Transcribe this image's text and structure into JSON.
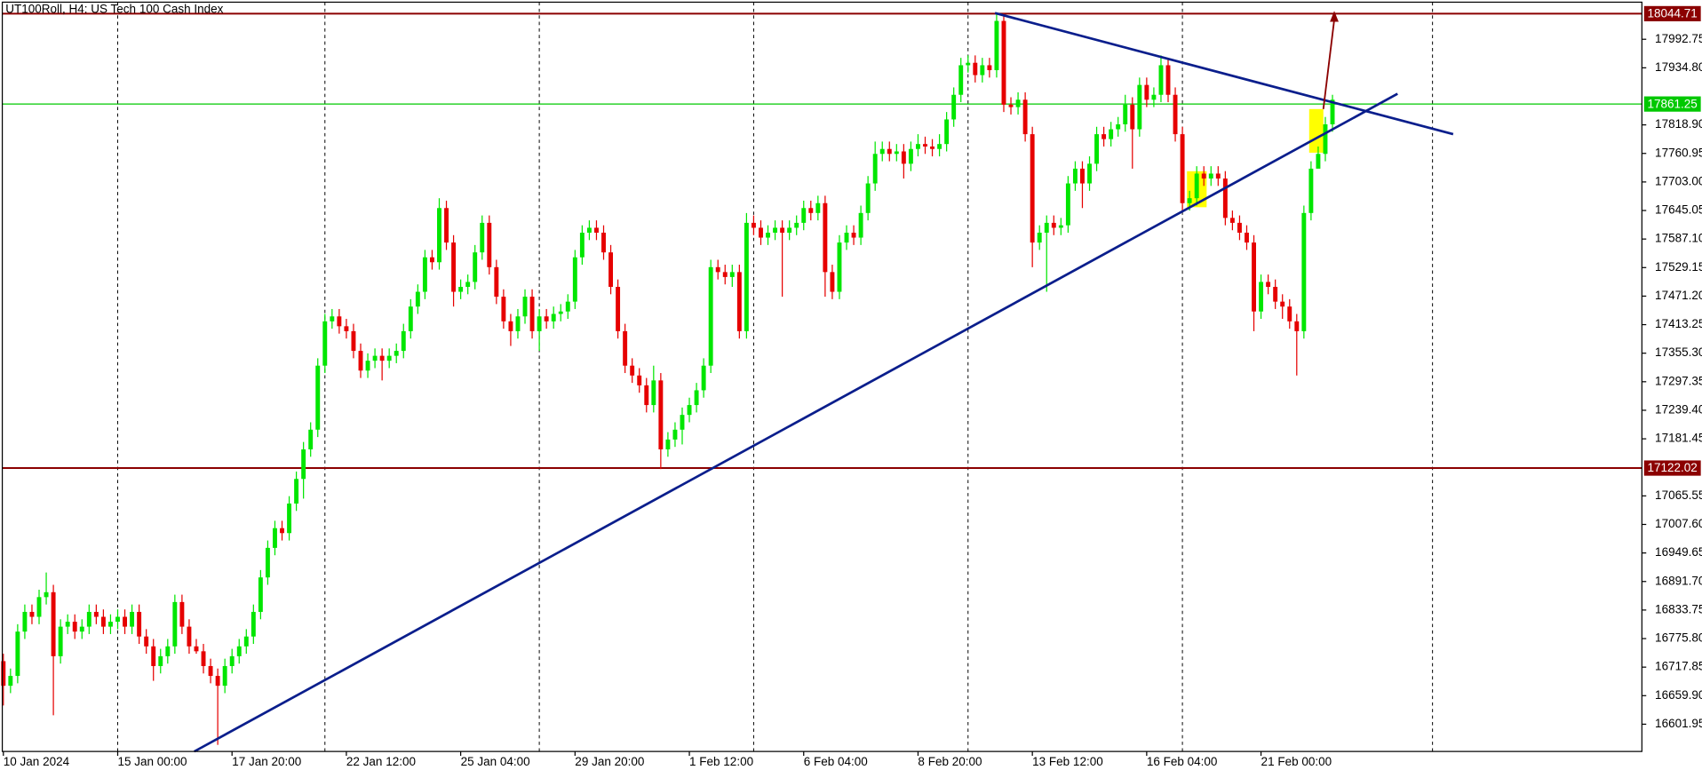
{
  "chart_data": {
    "type": "candlestick",
    "title": "UT100Roll, H4:  US Tech 100 Cash Index",
    "open": [
      16730,
      16680,
      16700,
      16790,
      16830,
      16820,
      16860,
      16870,
      16740,
      16800,
      16810,
      16790,
      16800,
      16830,
      16820,
      16800,
      16810,
      16820,
      16800,
      16830,
      16780,
      16760,
      16720,
      16740,
      16760,
      16850,
      16800,
      16760,
      16750,
      16720,
      16700,
      16680,
      16720,
      16740,
      16760,
      16780,
      16830,
      16900,
      16960,
      17000,
      16990,
      17050,
      17100,
      17160,
      17200,
      17330,
      17420,
      17430,
      17410,
      17400,
      17360,
      17320,
      17340,
      17350,
      17340,
      17350,
      17360,
      17400,
      17450,
      17480,
      17550,
      17540,
      17650,
      17580,
      17480,
      17490,
      17500,
      17560,
      17620,
      17530,
      17470,
      17420,
      17400,
      17430,
      17470,
      17400,
      17430,
      17420,
      17435,
      17440,
      17460,
      17550,
      17600,
      17610,
      17600,
      17560,
      17490,
      17400,
      17330,
      17310,
      17290,
      17250,
      17300,
      17160,
      17180,
      17200,
      17230,
      17250,
      17280,
      17330,
      17530,
      17520,
      17510,
      17520,
      17400,
      17620,
      17610,
      17590,
      17600,
      17610,
      17600,
      17610,
      17620,
      17650,
      17640,
      17660,
      17520,
      17480,
      17580,
      17600,
      17590,
      17640,
      17700,
      17760,
      17770,
      17760,
      17765,
      17740,
      17770,
      17780,
      17775,
      17770,
      17780,
      17830,
      17880,
      17940,
      17945,
      17920,
      17940,
      17930,
      18030,
      17860,
      17855,
      17870,
      17800,
      17580,
      17600,
      17620,
      17610,
      17615,
      17700,
      17730,
      17700,
      17740,
      17800,
      17790,
      17810,
      17820,
      17860,
      17810,
      17900,
      17870,
      17880,
      17940,
      17880,
      17800,
      17660,
      17670,
      17720,
      17710,
      17720,
      17710,
      17630,
      17620,
      17600,
      17580,
      17440,
      17500,
      17490,
      17460,
      17450,
      17420,
      17400,
      17640,
      17730,
      17760,
      17820
    ],
    "high": [
      16745,
      16715,
      16805,
      16845,
      16845,
      16875,
      16910,
      16885,
      16815,
      16825,
      16825,
      16815,
      16845,
      16845,
      16835,
      16825,
      16835,
      16835,
      16845,
      16845,
      16795,
      16775,
      16755,
      16775,
      16865,
      16865,
      16815,
      16775,
      16765,
      16735,
      16715,
      16735,
      16755,
      16775,
      16795,
      16845,
      16915,
      16975,
      17015,
      17015,
      17065,
      17115,
      17175,
      17215,
      17345,
      17435,
      17445,
      17445,
      17425,
      17415,
      17375,
      17355,
      17365,
      17365,
      17365,
      17375,
      17415,
      17465,
      17495,
      17565,
      17565,
      17670,
      17665,
      17595,
      17505,
      17515,
      17575,
      17635,
      17635,
      17545,
      17485,
      17435,
      17445,
      17485,
      17485,
      17445,
      17445,
      17450,
      17455,
      17475,
      17565,
      17615,
      17625,
      17625,
      17615,
      17575,
      17505,
      17415,
      17345,
      17325,
      17305,
      17330,
      17315,
      17195,
      17215,
      17245,
      17265,
      17295,
      17345,
      17545,
      17545,
      17535,
      17535,
      17535,
      17640,
      17635,
      17625,
      17615,
      17625,
      17625,
      17625,
      17635,
      17665,
      17665,
      17675,
      17675,
      17535,
      17595,
      17615,
      17615,
      17655,
      17715,
      17785,
      17785,
      17785,
      17780,
      17780,
      17785,
      17800,
      17795,
      17790,
      17800,
      17845,
      17895,
      17955,
      17960,
      17960,
      17955,
      17955,
      18045,
      18045,
      17875,
      17885,
      17885,
      17815,
      17615,
      17635,
      17635,
      17630,
      17715,
      17745,
      17745,
      17755,
      17815,
      17815,
      17825,
      17835,
      17880,
      17875,
      17915,
      17915,
      17895,
      17960,
      17955,
      17895,
      17815,
      17685,
      17735,
      17735,
      17735,
      17735,
      17725,
      17645,
      17635,
      17615,
      17595,
      17515,
      17515,
      17505,
      17475,
      17465,
      17435,
      17655,
      17745,
      17775,
      17835,
      17880
    ],
    "low": [
      16640,
      16665,
      16685,
      16775,
      16805,
      16805,
      16845,
      16620,
      16725,
      16785,
      16775,
      16775,
      16785,
      16805,
      16785,
      16785,
      16795,
      16785,
      16785,
      16765,
      16745,
      16690,
      16705,
      16725,
      16745,
      16785,
      16745,
      16745,
      16705,
      16685,
      16560,
      16665,
      16705,
      16725,
      16745,
      16765,
      16815,
      16885,
      16945,
      16975,
      16975,
      17035,
      17060,
      17145,
      17185,
      17315,
      17405,
      17395,
      17385,
      17345,
      17305,
      17305,
      17325,
      17300,
      17325,
      17335,
      17345,
      17385,
      17435,
      17465,
      17525,
      17525,
      17565,
      17450,
      17465,
      17475,
      17485,
      17545,
      17515,
      17455,
      17405,
      17370,
      17385,
      17415,
      17385,
      17360,
      17405,
      17405,
      17420,
      17425,
      17445,
      17535,
      17585,
      17585,
      17545,
      17475,
      17385,
      17315,
      17295,
      17275,
      17235,
      17235,
      17120,
      17145,
      17165,
      17170,
      17215,
      17235,
      17265,
      17315,
      17505,
      17495,
      17490,
      17385,
      17385,
      17595,
      17575,
      17575,
      17585,
      17470,
      17585,
      17595,
      17605,
      17625,
      17625,
      17470,
      17465,
      17465,
      17565,
      17575,
      17575,
      17625,
      17685,
      17745,
      17745,
      17745,
      17710,
      17725,
      17755,
      17760,
      17755,
      17755,
      17765,
      17815,
      17865,
      17925,
      17905,
      17905,
      17915,
      17915,
      17845,
      17840,
      17840,
      17785,
      17530,
      17565,
      17480,
      17595,
      17595,
      17600,
      17685,
      17650,
      17685,
      17725,
      17775,
      17775,
      17795,
      17805,
      17730,
      17795,
      17855,
      17855,
      17865,
      17865,
      17785,
      17645,
      17645,
      17655,
      17695,
      17695,
      17695,
      17615,
      17605,
      17585,
      17565,
      17400,
      17425,
      17475,
      17445,
      17425,
      17405,
      17310,
      17385,
      17625,
      17745,
      17745,
      17805
    ],
    "close": [
      16680,
      16700,
      16790,
      16830,
      16820,
      16860,
      16870,
      16740,
      16800,
      16810,
      16790,
      16800,
      16830,
      16820,
      16800,
      16810,
      16820,
      16800,
      16830,
      16780,
      16760,
      16720,
      16740,
      16760,
      16850,
      16800,
      16760,
      16750,
      16720,
      16700,
      16680,
      16720,
      16740,
      16760,
      16780,
      16830,
      16900,
      16960,
      17000,
      16990,
      17050,
      17100,
      17160,
      17200,
      17330,
      17420,
      17430,
      17410,
      17400,
      17360,
      17320,
      17340,
      17350,
      17340,
      17350,
      17360,
      17400,
      17450,
      17480,
      17550,
      17540,
      17650,
      17580,
      17480,
      17490,
      17500,
      17560,
      17620,
      17530,
      17470,
      17420,
      17400,
      17430,
      17470,
      17400,
      17430,
      17420,
      17435,
      17440,
      17460,
      17550,
      17600,
      17610,
      17600,
      17560,
      17490,
      17400,
      17330,
      17310,
      17290,
      17250,
      17300,
      17160,
      17180,
      17200,
      17230,
      17250,
      17280,
      17330,
      17530,
      17520,
      17510,
      17520,
      17400,
      17620,
      17610,
      17590,
      17600,
      17610,
      17600,
      17610,
      17620,
      17650,
      17640,
      17660,
      17520,
      17480,
      17580,
      17600,
      17590,
      17640,
      17700,
      17760,
      17770,
      17760,
      17765,
      17740,
      17770,
      17780,
      17775,
      17770,
      17780,
      17830,
      17880,
      17940,
      17945,
      17920,
      17940,
      17930,
      18030,
      17860,
      17855,
      17870,
      17800,
      17580,
      17600,
      17620,
      17610,
      17615,
      17700,
      17730,
      17700,
      17740,
      17800,
      17790,
      17810,
      17820,
      17860,
      17810,
      17900,
      17870,
      17880,
      17940,
      17880,
      17800,
      17660,
      17670,
      17720,
      17710,
      17720,
      17710,
      17630,
      17620,
      17600,
      17580,
      17440,
      17500,
      17490,
      17460,
      17450,
      17420,
      17400,
      17640,
      17730,
      17760,
      17820,
      17870
    ],
    "up_color": "#00e600",
    "down_color": "#e60000",
    "xlim": [
      -0.15,
      229.3
    ],
    "xticks": [
      {
        "value": 0,
        "label": "10 Jan 2024"
      },
      {
        "value": 16,
        "label": "15 Jan 00:00"
      },
      {
        "value": 32,
        "label": "17 Jan 20:00"
      },
      {
        "value": 48,
        "label": "22 Jan 12:00"
      },
      {
        "value": 64,
        "label": "25 Jan 04:00"
      },
      {
        "value": 80,
        "label": "29 Jan 20:00"
      },
      {
        "value": 96,
        "label": "1 Feb 12:00"
      },
      {
        "value": 112,
        "label": "6 Feb 04:00"
      },
      {
        "value": 128,
        "label": "8 Feb 20:00"
      },
      {
        "value": 144,
        "label": "13 Feb 12:00"
      },
      {
        "value": 160,
        "label": "16 Feb 04:00"
      },
      {
        "value": 176,
        "label": "21 Feb 00:00"
      }
    ],
    "xgrid": [
      16,
      45,
      75,
      105,
      135,
      165,
      200
    ],
    "ylim": [
      16546.6,
      18068.05
    ],
    "yticks": [
      17992.75,
      {
        "value": 17934.8,
        "label": "17934.80"
      },
      {
        "value": 17818.9,
        "label": "17818.90"
      },
      17760.95,
      {
        "value": 17703.0,
        "label": "17703.00"
      },
      17645.05,
      {
        "value": 17587.1,
        "label": "17587.10"
      },
      17529.15,
      {
        "value": 17471.2,
        "label": "17471.20"
      },
      17413.25,
      {
        "value": 17355.3,
        "label": "17355.30"
      },
      17297.35,
      {
        "value": 17239.4,
        "label": "17239.40"
      },
      17181.45,
      17065.55,
      {
        "value": 17007.6,
        "label": "17007.60"
      },
      16949.65,
      {
        "value": 16891.7,
        "label": "16891.70"
      },
      16833.75,
      {
        "value": 16775.8,
        "label": "16775.80"
      },
      16717.85,
      {
        "value": 16659.9,
        "label": "16659.90"
      },
      16601.95
    ],
    "levels": [
      {
        "value": 18044.71,
        "color": "#8b0000"
      },
      {
        "value": 17122.02,
        "color": "#8b0000"
      },
      {
        "value": 17861.25,
        "color": "#00c800"
      }
    ]
  }
}
